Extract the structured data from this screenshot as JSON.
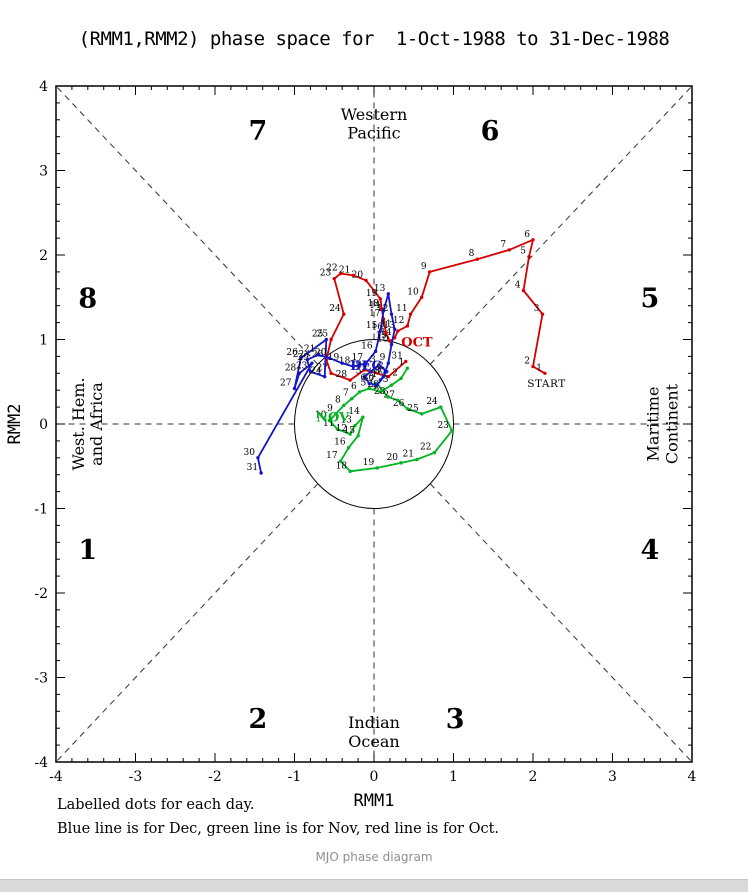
{
  "page": {
    "title": "(RMM1,RMM2) phase space for  1-Oct-1988 to 31-Dec-1988",
    "footnote_line1": "Labelled dots for each day.",
    "footnote_line2": "Blue line is for Dec, green line is for Nov, red line is for Oct.",
    "caption": "MJO phase diagram"
  },
  "chart_data": {
    "type": "line",
    "title": "(RMM1,RMM2) phase space for  1-Oct-1988 to 31-Dec-1988",
    "xlabel": "RMM1",
    "ylabel": "RMM2",
    "xlim": [
      -4,
      4
    ],
    "ylim": [
      -4,
      4
    ],
    "ticks": [
      -4,
      -3,
      -2,
      -1,
      0,
      1,
      2,
      3,
      4
    ],
    "grid": false,
    "unit_circle_radius": 1,
    "dashed_guides": true,
    "guide_color": "#333333",
    "phase_labels": [
      {
        "label": "1",
        "x": -3.6,
        "y": -1.6
      },
      {
        "label": "2",
        "x": -1.46,
        "y": -3.6
      },
      {
        "label": "3",
        "x": 1.02,
        "y": -3.6
      },
      {
        "label": "4",
        "x": 3.47,
        "y": -1.6
      },
      {
        "label": "5",
        "x": 3.47,
        "y": 1.38
      },
      {
        "label": "6",
        "x": 1.46,
        "y": 3.36
      },
      {
        "label": "7",
        "x": -1.46,
        "y": 3.36
      },
      {
        "label": "8",
        "x": -3.6,
        "y": 1.38
      }
    ],
    "region_labels": {
      "top": [
        "Western",
        "Pacific"
      ],
      "bottom": [
        "Indian",
        "Ocean"
      ],
      "left": [
        "West. Hem.",
        "and Africa"
      ],
      "right": [
        "Maritime",
        "Continent"
      ]
    },
    "start_label": {
      "text": "START",
      "x": 2.17,
      "y": 0.44
    },
    "series": [
      {
        "name": "Oct 1988",
        "month_label": "OCT",
        "color": "#d40000",
        "label_x": 0.54,
        "label_y": 0.92,
        "points": [
          [
            2.15,
            0.6
          ],
          [
            2.0,
            0.68
          ],
          [
            2.12,
            1.3
          ],
          [
            1.88,
            1.58
          ],
          [
            1.95,
            1.98
          ],
          [
            2.0,
            2.18
          ],
          [
            1.7,
            2.06
          ],
          [
            1.3,
            1.95
          ],
          [
            0.7,
            1.8
          ],
          [
            0.6,
            1.5
          ],
          [
            0.46,
            1.3
          ],
          [
            0.42,
            1.16
          ],
          [
            0.3,
            1.1
          ],
          [
            0.26,
            1.02
          ],
          [
            0.2,
            0.98
          ],
          [
            0.15,
            1.08
          ],
          [
            0.12,
            1.24
          ],
          [
            0.1,
            1.36
          ],
          [
            0.08,
            1.48
          ],
          [
            -0.1,
            1.7
          ],
          [
            -0.26,
            1.76
          ],
          [
            -0.42,
            1.78
          ],
          [
            -0.5,
            1.72
          ],
          [
            -0.38,
            1.3
          ],
          [
            -0.54,
            1.0
          ],
          [
            -0.6,
            0.76
          ],
          [
            -0.54,
            0.6
          ],
          [
            -0.3,
            0.52
          ],
          [
            -0.12,
            0.64
          ],
          [
            0.18,
            0.56
          ],
          [
            0.4,
            0.74
          ]
        ]
      },
      {
        "name": "Nov 1988",
        "month_label": "NOV",
        "color": "#00b422",
        "label_x": -0.52,
        "label_y": 0.03,
        "points": [
          [
            0.42,
            0.66
          ],
          [
            0.34,
            0.54
          ],
          [
            0.22,
            0.46
          ],
          [
            0.08,
            0.38
          ],
          [
            -0.06,
            0.42
          ],
          [
            -0.18,
            0.38
          ],
          [
            -0.28,
            0.3
          ],
          [
            -0.38,
            0.22
          ],
          [
            -0.48,
            0.12
          ],
          [
            -0.56,
            0.04
          ],
          [
            -0.46,
            -0.06
          ],
          [
            -0.3,
            -0.12
          ],
          [
            -0.24,
            -0.02
          ],
          [
            -0.14,
            0.08
          ],
          [
            -0.2,
            -0.14
          ],
          [
            -0.32,
            -0.28
          ],
          [
            -0.42,
            -0.44
          ],
          [
            -0.3,
            -0.56
          ],
          [
            0.04,
            -0.52
          ],
          [
            0.34,
            -0.46
          ],
          [
            0.54,
            -0.42
          ],
          [
            0.76,
            -0.34
          ],
          [
            0.98,
            -0.08
          ],
          [
            0.84,
            0.2
          ],
          [
            0.6,
            0.12
          ],
          [
            0.42,
            0.18
          ],
          [
            0.3,
            0.28
          ],
          [
            0.18,
            0.32
          ],
          [
            0.1,
            0.4
          ],
          [
            0.04,
            0.48
          ]
        ]
      },
      {
        "name": "Dec 1988",
        "month_label": "DEC",
        "color": "#1414c8",
        "label_x": -0.1,
        "label_y": 0.64,
        "points": [
          [
            0.08,
            0.52
          ],
          [
            0.16,
            0.62
          ],
          [
            0.06,
            0.7
          ],
          [
            -0.04,
            0.62
          ],
          [
            -0.12,
            0.56
          ],
          [
            -0.06,
            0.48
          ],
          [
            0.04,
            0.46
          ],
          [
            0.12,
            0.56
          ],
          [
            0.18,
            0.72
          ],
          [
            0.22,
            0.94
          ],
          [
            0.26,
            1.12
          ],
          [
            0.22,
            1.3
          ],
          [
            0.18,
            1.54
          ],
          [
            0.12,
            1.34
          ],
          [
            0.08,
            1.1
          ],
          [
            0.02,
            0.86
          ],
          [
            -0.1,
            0.72
          ],
          [
            -0.26,
            0.68
          ],
          [
            -0.4,
            0.72
          ],
          [
            -0.56,
            0.78
          ],
          [
            -0.7,
            0.82
          ],
          [
            -0.84,
            0.76
          ],
          [
            -0.8,
            0.62
          ],
          [
            -0.62,
            0.56
          ],
          [
            -0.6,
            1.0
          ],
          [
            -0.92,
            0.78
          ],
          [
            -1.0,
            0.42
          ],
          [
            -0.94,
            0.6
          ],
          [
            -0.78,
            0.72
          ],
          [
            -1.46,
            -0.4
          ],
          [
            -1.42,
            -0.58
          ]
        ]
      }
    ]
  }
}
